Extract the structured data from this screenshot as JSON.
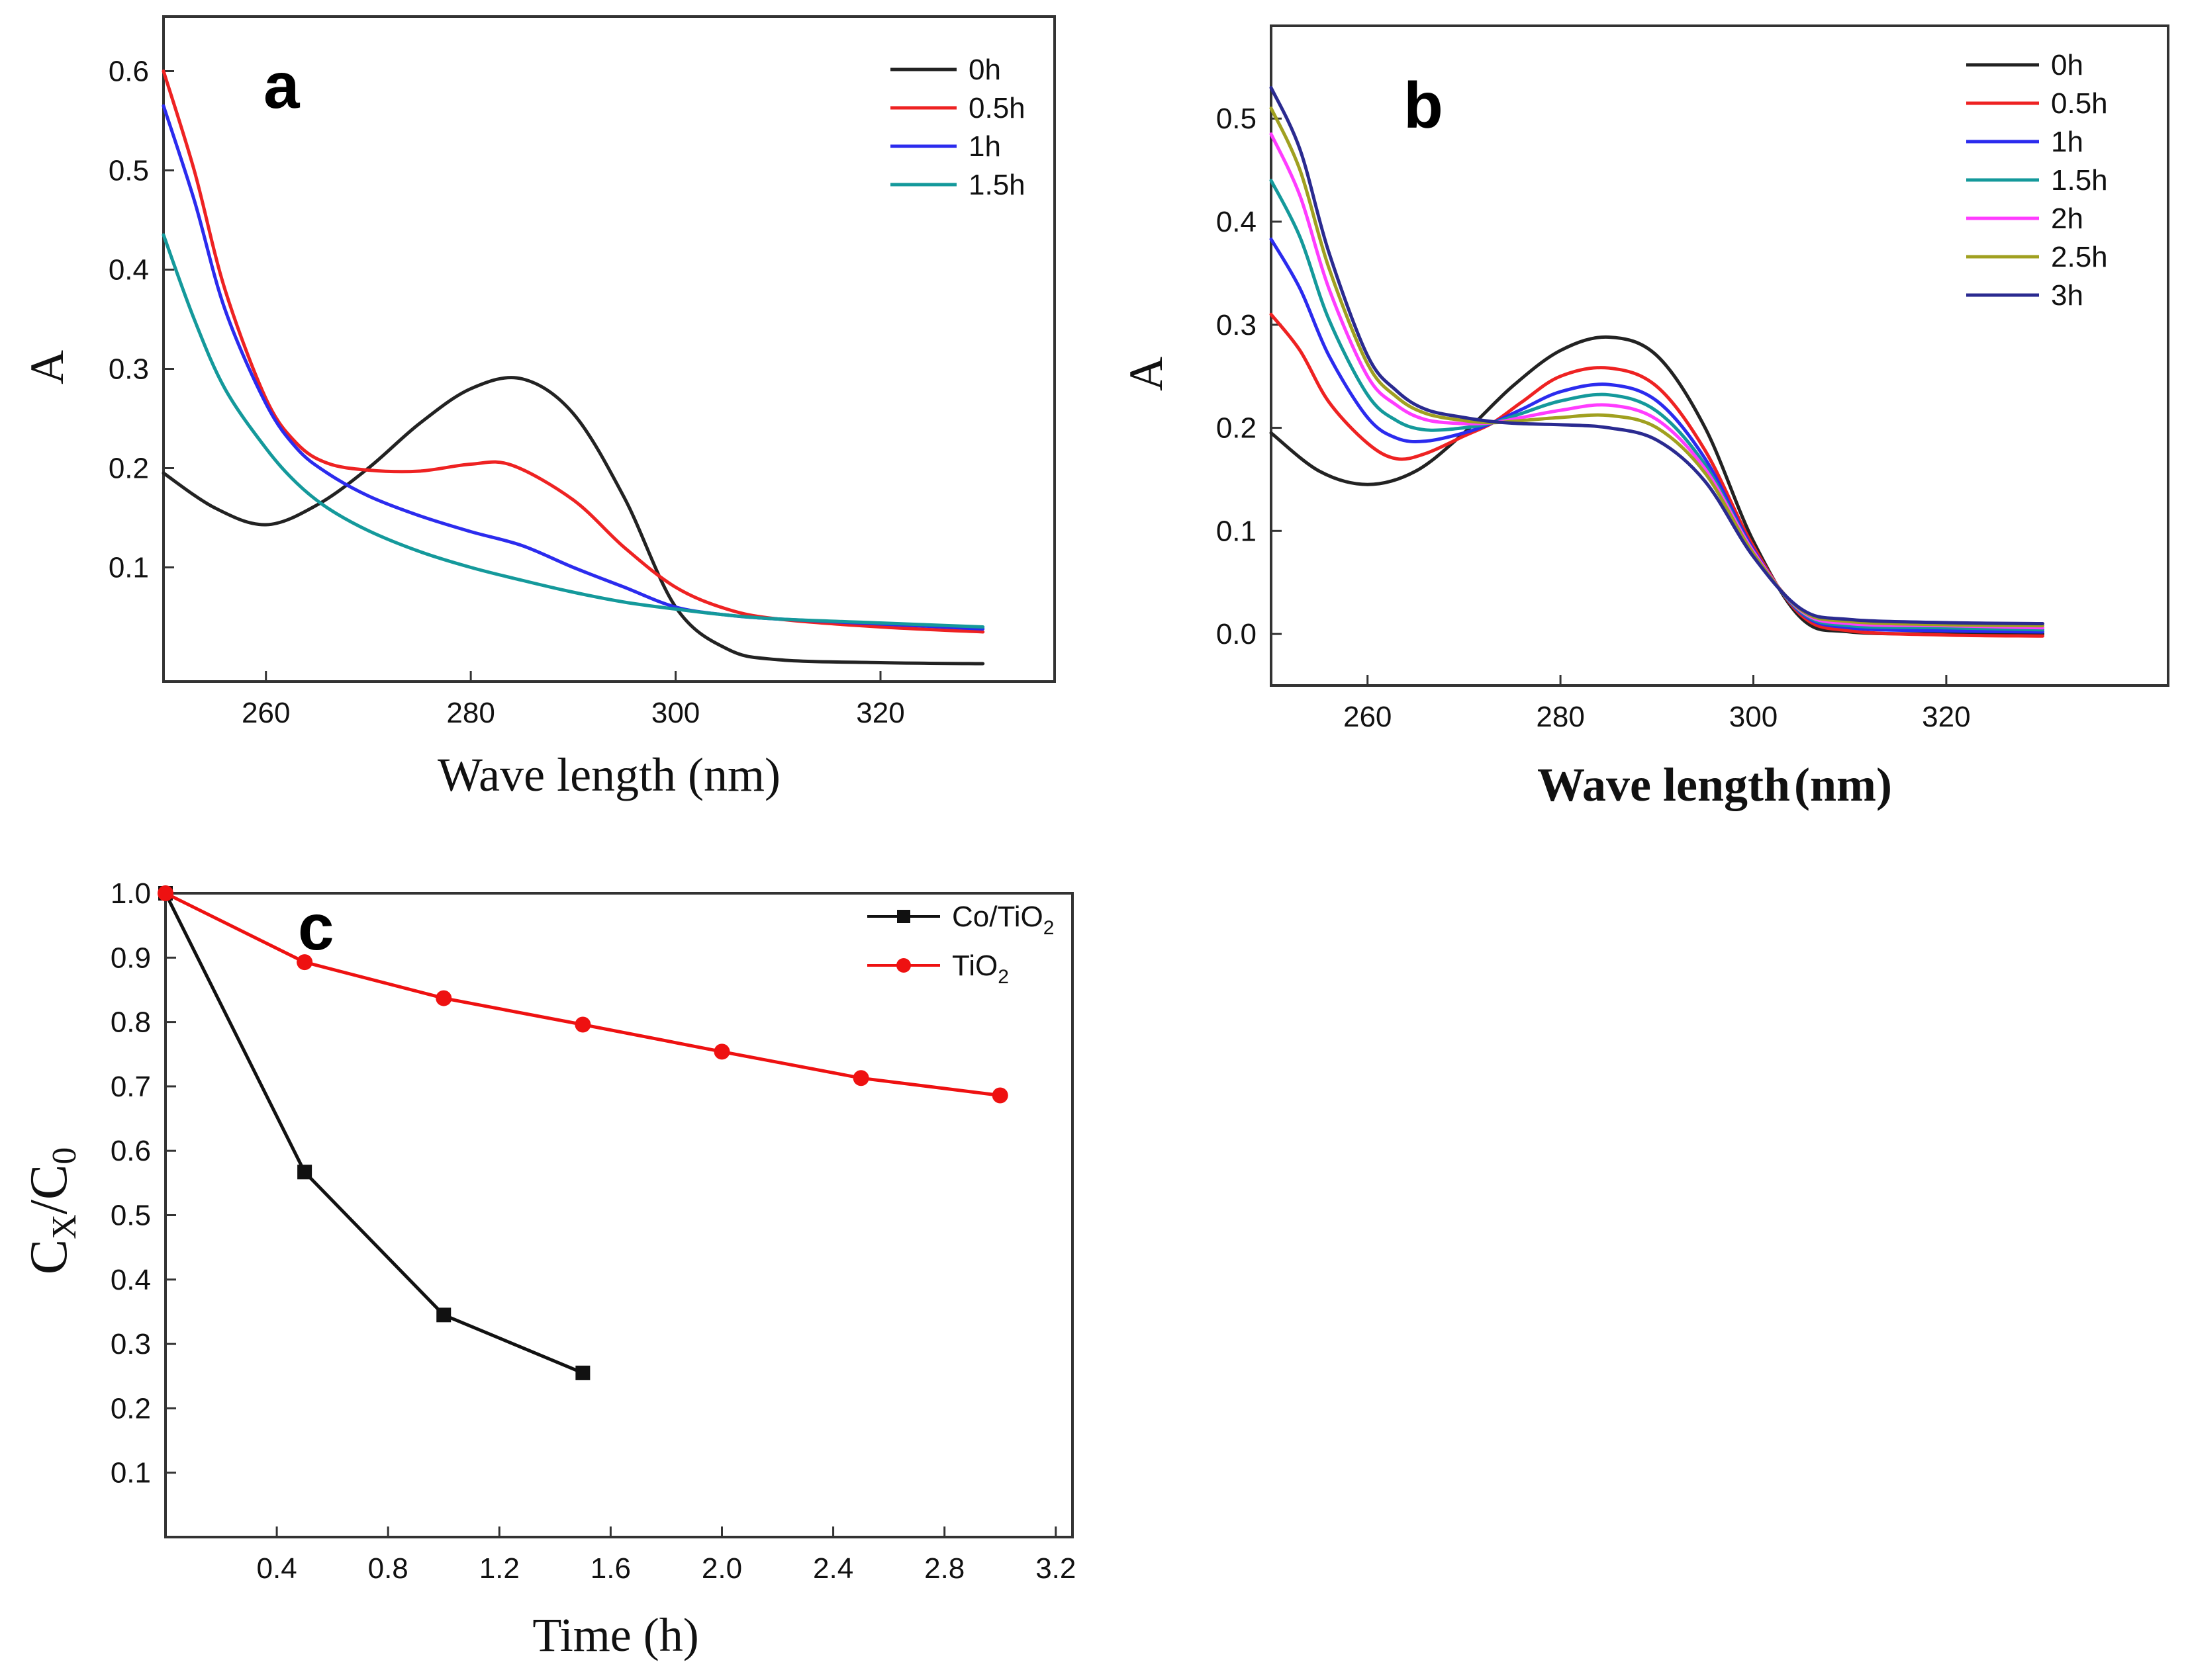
{
  "chart_data": [
    {
      "id": "a",
      "type": "line",
      "panel_label": "a",
      "xlabel": "Wave length  (nm)",
      "ylabel": "A",
      "xlim": [
        250,
        337
      ],
      "ylim": [
        -0.015,
        0.655
      ],
      "xticks": [
        260,
        280,
        300,
        320
      ],
      "yticks": [
        0.1,
        0.2,
        0.3,
        0.4,
        0.5,
        0.6
      ],
      "legend_position": "top-right",
      "series": [
        {
          "name": "0h",
          "color": "#222222",
          "x": [
            250,
            255,
            260,
            265,
            270,
            275,
            280,
            285,
            290,
            295,
            300,
            305,
            310,
            320,
            330
          ],
          "y": [
            0.195,
            0.16,
            0.143,
            0.163,
            0.2,
            0.245,
            0.28,
            0.29,
            0.255,
            0.17,
            0.06,
            0.018,
            0.007,
            0.004,
            0.003
          ]
        },
        {
          "name": "0.5h",
          "color": "#ee2222",
          "x": [
            250,
            253,
            256,
            260,
            263,
            266,
            270,
            275,
            280,
            284,
            290,
            295,
            300,
            305,
            310,
            320,
            330
          ],
          "y": [
            0.6,
            0.5,
            0.38,
            0.27,
            0.225,
            0.205,
            0.198,
            0.197,
            0.204,
            0.203,
            0.168,
            0.12,
            0.08,
            0.058,
            0.048,
            0.04,
            0.035
          ]
        },
        {
          "name": "1h",
          "color": "#2b2bee",
          "x": [
            250,
            253,
            256,
            260,
            263,
            266,
            270,
            275,
            280,
            285,
            290,
            295,
            300,
            305,
            310,
            320,
            330
          ],
          "y": [
            0.565,
            0.47,
            0.36,
            0.265,
            0.22,
            0.195,
            0.172,
            0.152,
            0.136,
            0.122,
            0.1,
            0.08,
            0.06,
            0.052,
            0.048,
            0.043,
            0.038
          ]
        },
        {
          "name": "1.5h",
          "color": "#14999b",
          "x": [
            250,
            253,
            256,
            260,
            263,
            266,
            270,
            275,
            280,
            285,
            290,
            295,
            300,
            305,
            310,
            320,
            330
          ],
          "y": [
            0.435,
            0.35,
            0.28,
            0.22,
            0.185,
            0.16,
            0.137,
            0.116,
            0.1,
            0.087,
            0.075,
            0.065,
            0.058,
            0.052,
            0.048,
            0.044,
            0.04
          ]
        }
      ]
    },
    {
      "id": "b",
      "type": "line",
      "panel_label": "b",
      "xlabel": "Wave length",
      "xlabel_unit": "(nm)",
      "ylabel": "A",
      "xlim": [
        250,
        343
      ],
      "ylim": [
        -0.05,
        0.59
      ],
      "xticks": [
        260,
        280,
        300,
        320
      ],
      "yticks": [
        0.0,
        0.1,
        0.2,
        0.3,
        0.4,
        0.5
      ],
      "legend_position": "top-right",
      "series": [
        {
          "name": "0h",
          "color": "#222222",
          "x": [
            250,
            255,
            260,
            265,
            270,
            275,
            280,
            285,
            290,
            295,
            300,
            305,
            310,
            320,
            330
          ],
          "y": [
            0.195,
            0.158,
            0.145,
            0.158,
            0.195,
            0.24,
            0.275,
            0.288,
            0.27,
            0.2,
            0.09,
            0.015,
            0.002,
            0.0,
            0.0
          ]
        },
        {
          "name": "0.5h",
          "color": "#ee2222",
          "x": [
            250,
            253,
            256,
            260,
            263,
            266,
            270,
            273,
            276,
            280,
            285,
            290,
            295,
            300,
            305,
            310,
            320,
            330
          ],
          "y": [
            0.31,
            0.275,
            0.225,
            0.185,
            0.17,
            0.175,
            0.192,
            0.205,
            0.225,
            0.25,
            0.258,
            0.24,
            0.178,
            0.085,
            0.018,
            0.003,
            -0.001,
            -0.002
          ]
        },
        {
          "name": "1h",
          "color": "#2b2bee",
          "x": [
            250,
            253,
            256,
            260,
            263,
            266,
            270,
            273,
            276,
            280,
            285,
            290,
            295,
            300,
            305,
            310,
            320,
            330
          ],
          "y": [
            0.383,
            0.335,
            0.27,
            0.21,
            0.19,
            0.187,
            0.195,
            0.205,
            0.218,
            0.235,
            0.242,
            0.226,
            0.17,
            0.082,
            0.02,
            0.006,
            0.003,
            0.002
          ]
        },
        {
          "name": "1.5h",
          "color": "#14999b",
          "x": [
            250,
            253,
            256,
            260,
            263,
            266,
            270,
            273,
            276,
            280,
            285,
            290,
            295,
            300,
            305,
            310,
            320,
            330
          ],
          "y": [
            0.44,
            0.385,
            0.305,
            0.232,
            0.207,
            0.198,
            0.2,
            0.205,
            0.214,
            0.226,
            0.232,
            0.216,
            0.164,
            0.08,
            0.021,
            0.008,
            0.006,
            0.004
          ]
        },
        {
          "name": "2h",
          "color": "#ff3cff",
          "x": [
            250,
            253,
            256,
            260,
            263,
            266,
            270,
            273,
            276,
            280,
            285,
            290,
            295,
            300,
            305,
            310,
            320,
            330
          ],
          "y": [
            0.485,
            0.425,
            0.335,
            0.25,
            0.222,
            0.208,
            0.204,
            0.205,
            0.21,
            0.217,
            0.222,
            0.208,
            0.16,
            0.08,
            0.022,
            0.01,
            0.008,
            0.006
          ]
        },
        {
          "name": "2.5h",
          "color": "#a0a020",
          "x": [
            250,
            253,
            256,
            260,
            263,
            266,
            270,
            273,
            276,
            280,
            285,
            290,
            295,
            300,
            305,
            310,
            320,
            330
          ],
          "y": [
            0.51,
            0.45,
            0.355,
            0.262,
            0.23,
            0.214,
            0.207,
            0.205,
            0.207,
            0.21,
            0.212,
            0.2,
            0.156,
            0.078,
            0.023,
            0.012,
            0.009,
            0.008
          ]
        },
        {
          "name": "3h",
          "color": "#2a2a90",
          "x": [
            250,
            253,
            256,
            260,
            263,
            266,
            270,
            273,
            276,
            280,
            285,
            290,
            295,
            300,
            305,
            310,
            320,
            330
          ],
          "y": [
            0.53,
            0.47,
            0.37,
            0.27,
            0.236,
            0.218,
            0.21,
            0.206,
            0.204,
            0.203,
            0.2,
            0.188,
            0.148,
            0.075,
            0.024,
            0.014,
            0.011,
            0.01
          ]
        }
      ]
    },
    {
      "id": "c",
      "type": "line",
      "panel_label": "c",
      "xlabel": "Time  (h)",
      "ylabel_main": "C",
      "ylabel_sub1": "X",
      "ylabel_mid": "/C",
      "ylabel_sub2": "0",
      "xlim": [
        0,
        3.26
      ],
      "ylim": [
        0,
        1.0
      ],
      "xticks": [
        0.4,
        0.8,
        1.2,
        1.6,
        2.0,
        2.4,
        2.8,
        3.2
      ],
      "yticks": [
        0.1,
        0.2,
        0.3,
        0.4,
        0.5,
        0.6,
        0.7,
        0.8,
        0.9,
        1.0
      ],
      "legend_position": "top-right",
      "series": [
        {
          "name": "Co/TiO",
          "name_sub": "2",
          "color": "#111111",
          "marker": "square",
          "x": [
            0,
            0.5,
            1.0,
            1.5
          ],
          "y": [
            1.0,
            0.567,
            0.345,
            0.255
          ]
        },
        {
          "name": "TiO",
          "name_sub": "2",
          "color": "#ee1111",
          "marker": "circle",
          "x": [
            0,
            0.5,
            1.0,
            1.5,
            2.0,
            2.5,
            3.0
          ],
          "y": [
            1.0,
            0.893,
            0.837,
            0.796,
            0.754,
            0.713,
            0.686
          ]
        }
      ]
    }
  ]
}
